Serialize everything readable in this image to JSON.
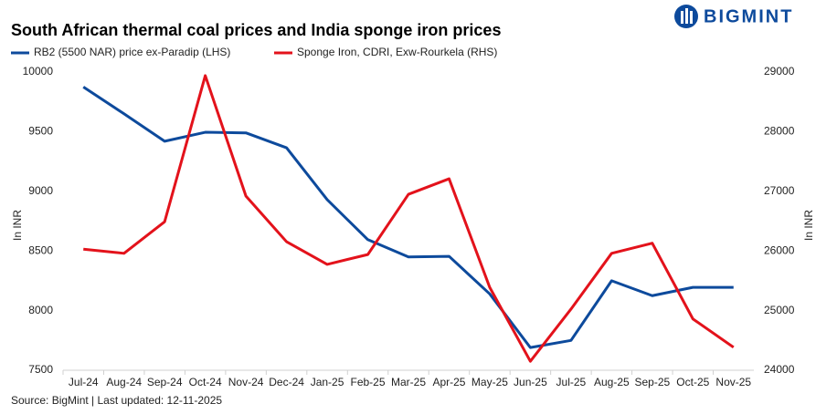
{
  "chart_data": {
    "type": "line",
    "title": "South African thermal coal prices and India sponge iron prices",
    "categories": [
      "Jul-24",
      "Aug-24",
      "Sep-24",
      "Oct-24",
      "Nov-24",
      "Dec-24",
      "Jan-25",
      "Feb-25",
      "Mar-25",
      "Apr-25",
      "May-25",
      "Jun-25",
      "Jul-25",
      "Aug-25",
      "Sep-25",
      "Oct-25",
      "Nov-25"
    ],
    "series": [
      {
        "name": "RB2 (5500 NAR) price ex-Paradip (LHS)",
        "color": "#0d4a9c",
        "values": [
          9875,
          9650,
          9420,
          9495,
          9490,
          9365,
          8930,
          8595,
          8450,
          8455,
          8140,
          7690,
          7750,
          8250,
          8125,
          8195,
          8195
        ]
      },
      {
        "name": "Sponge Iron, CDRI, Exw-Rourkela (RHS)",
        "color": "#e3121b",
        "axis": "y2",
        "values": [
          26030,
          25960,
          26490,
          28940,
          26920,
          26155,
          25775,
          25940,
          26950,
          27210,
          25390,
          24150,
          25025,
          25960,
          26130,
          24860,
          24385
        ]
      }
    ],
    "ylim": [
      7500,
      10000
    ],
    "yticks": [
      7500,
      8000,
      8500,
      9000,
      9500,
      10000
    ],
    "y2lim": [
      24000,
      29000
    ],
    "y2ticks": [
      24000,
      25000,
      26000,
      27000,
      28000,
      29000
    ],
    "y_label": "In INR",
    "y2_label": "In INR",
    "grid": false,
    "legend": "top-left",
    "source": "Source: BigMint | Last updated: 12-11-2025"
  },
  "logo": "BIGMINT"
}
